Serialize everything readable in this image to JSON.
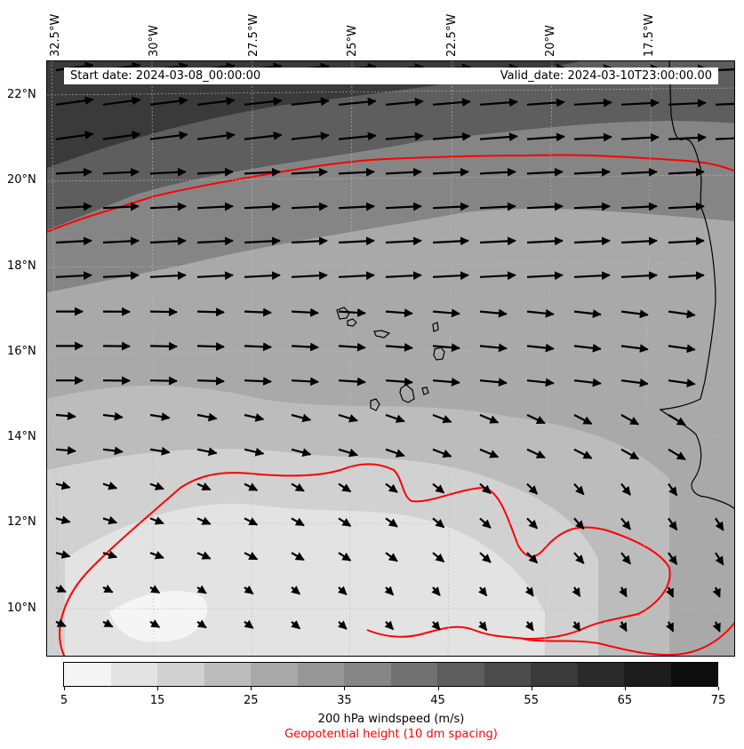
{
  "info": {
    "start": "Start date: 2024-03-08_00:00:00",
    "valid": "Valid_date: 2024-03-10T23:00:00.00"
  },
  "longitudes": [
    "32.5°W",
    "30°W",
    "27.5°W",
    "25°W",
    "22.5°W",
    "20°W",
    "17.5°W"
  ],
  "latitudes": [
    "22°N",
    "20°N",
    "18°N",
    "16°N",
    "14°N",
    "12°N",
    "10°N"
  ],
  "colorbar": {
    "ticks": [
      "5",
      "15",
      "25",
      "35",
      "45",
      "55",
      "65",
      "75"
    ],
    "levels": [
      5,
      10,
      15,
      20,
      25,
      30,
      35,
      40,
      45,
      50,
      55,
      60,
      65,
      70,
      75
    ],
    "colors": [
      "#f5f5f5",
      "#e3e3e3",
      "#d1d1d1",
      "#bcbcbc",
      "#a9a9a9",
      "#979797",
      "#858585",
      "#717171",
      "#5e5e5e",
      "#4b4b4b",
      "#3a3a3a",
      "#2a2a2a",
      "#1c1c1c",
      "#0d0d0d"
    ],
    "label": "200 hPa windspeed (m/s)",
    "sublabel": "Geopotential height (10 dm spacing)"
  },
  "colors": {
    "contour": "#ff0000",
    "coast": "#000000"
  }
}
